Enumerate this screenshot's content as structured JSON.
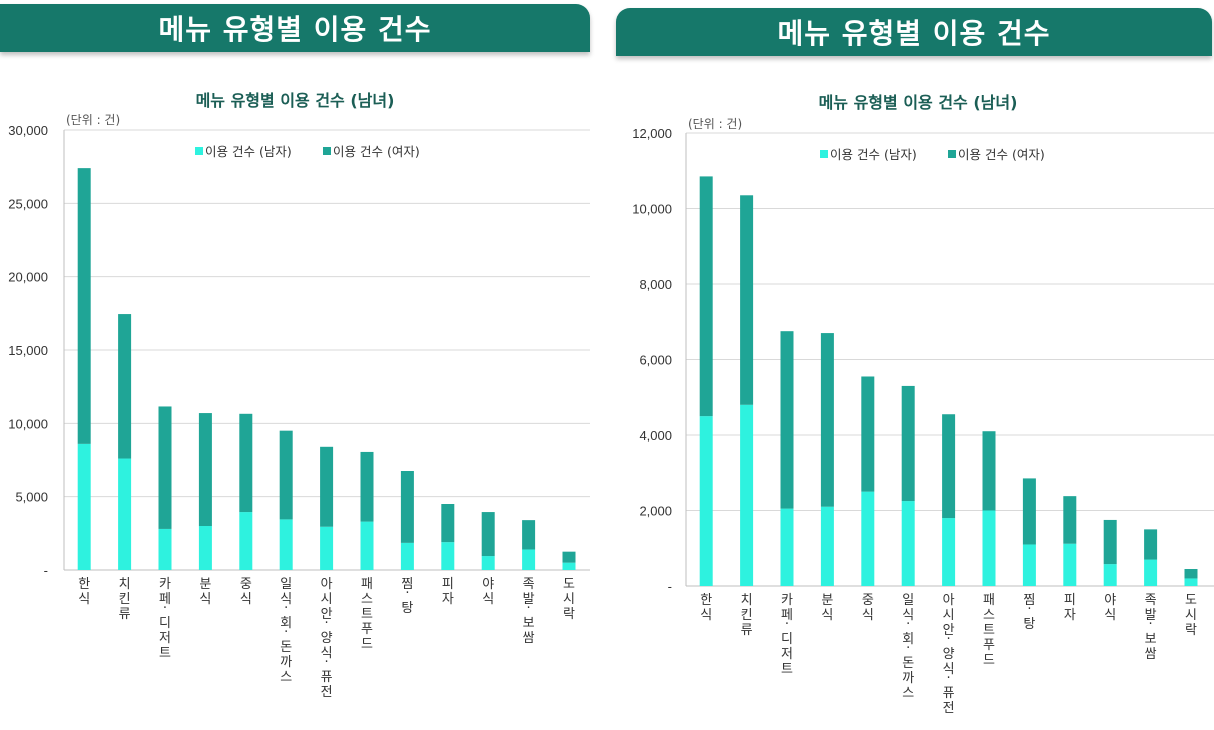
{
  "colors": {
    "male": "#2ef2df",
    "female": "#1fa596",
    "banner": "#16786a",
    "title": "#1b5e55"
  },
  "chart_data": [
    {
      "type": "bar",
      "stacked": true,
      "banner": "메뉴 유형별 이용 건수",
      "title": "메뉴 유형별 이용 건수 (남녀)",
      "unit": "(단위 : 건)",
      "ylim": [
        0,
        30000
      ],
      "yticks": [
        0,
        5000,
        10000,
        15000,
        20000,
        25000,
        30000
      ],
      "ytick_labels": [
        "-",
        "5,000",
        "10,000",
        "15,000",
        "20,000",
        "25,000",
        "30,000"
      ],
      "grid": true,
      "legend_position": "top",
      "categories": [
        "한식",
        "치킨류",
        "카페·디저트",
        "분식",
        "중식",
        "일식·회·돈까스",
        "아시안·양식·퓨전",
        "패스트푸드",
        "찜·탕",
        "피자",
        "야식",
        "족발·보쌈",
        "도시락"
      ],
      "series": [
        {
          "name": "이용 건수 (남자)",
          "values": [
            8600,
            7600,
            2800,
            3000,
            3950,
            3450,
            2950,
            3300,
            1850,
            1900,
            950,
            1400,
            500
          ]
        },
        {
          "name": "이용 건수 (여자)",
          "values": [
            18800,
            9850,
            8350,
            7700,
            6700,
            6050,
            5450,
            4750,
            4900,
            2600,
            3000,
            2000,
            750
          ]
        }
      ]
    },
    {
      "type": "bar",
      "stacked": true,
      "banner": "메뉴 유형별 이용 건수",
      "title": "메뉴 유형별 이용 건수 (남녀)",
      "unit": "(단위 : 건)",
      "ylim": [
        0,
        12000
      ],
      "yticks": [
        0,
        2000,
        4000,
        6000,
        8000,
        10000,
        12000
      ],
      "ytick_labels": [
        "-",
        "2,000",
        "4,000",
        "6,000",
        "8,000",
        "10,000",
        "12,000"
      ],
      "grid": true,
      "legend_position": "top",
      "categories": [
        "한식",
        "치킨류",
        "카페·디저트",
        "분식",
        "중식",
        "일식·회·돈까스",
        "아시안·양식·퓨전",
        "패스트푸드",
        "찜·탕",
        "피자",
        "야식",
        "족발·보쌈",
        "도시락"
      ],
      "series": [
        {
          "name": "이용 건수 (남자)",
          "values": [
            4500,
            4800,
            2050,
            2100,
            2500,
            2250,
            1800,
            2000,
            1100,
            1120,
            580,
            700,
            200
          ]
        },
        {
          "name": "이용 건수 (여자)",
          "values": [
            6350,
            5550,
            4700,
            4600,
            3050,
            3050,
            2750,
            2100,
            1750,
            1260,
            1170,
            800,
            250
          ]
        }
      ]
    }
  ]
}
